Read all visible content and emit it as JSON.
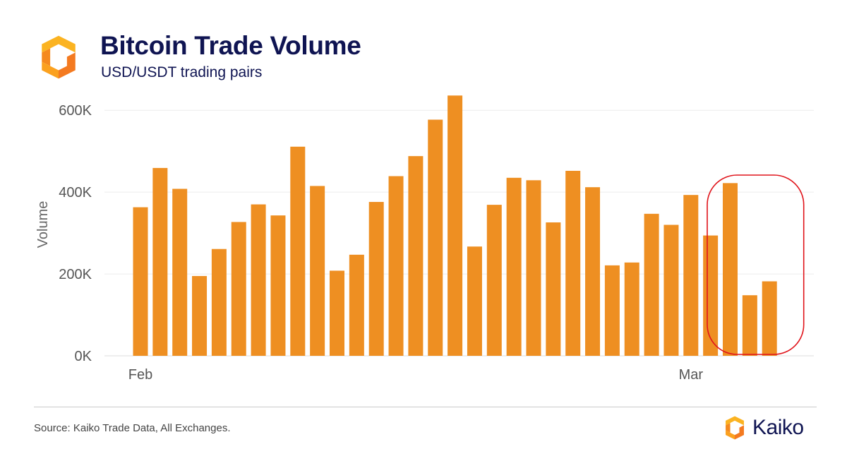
{
  "header": {
    "title": "Bitcoin Trade Volume",
    "subtitle": "USD/USDT trading pairs"
  },
  "footer": {
    "source": "Source: Kaiko Trade Data, All Exchanges.",
    "brand": "Kaiko"
  },
  "colors": {
    "bar": "#ee8f22",
    "title": "#0f1452",
    "highlight": "#e0141b",
    "grid": "#ececec"
  },
  "icons": {
    "logo": "kaiko-logo-icon",
    "brand_mark": "kaiko-logo-icon"
  },
  "chart_data": {
    "type": "bar",
    "title": "Bitcoin Trade Volume",
    "subtitle": "USD/USDT trading pairs",
    "xlabel": "",
    "ylabel": "Volume",
    "ylim": [
      0,
      640000
    ],
    "yticks": [
      0,
      200000,
      400000,
      600000
    ],
    "ytick_labels": [
      "0K",
      "200K",
      "400K",
      "600K"
    ],
    "x_tick_labels": [
      "Feb",
      "Mar"
    ],
    "grid": true,
    "categories": [
      "Feb 1",
      "Feb 2",
      "Feb 3",
      "Feb 4",
      "Feb 5",
      "Feb 6",
      "Feb 7",
      "Feb 8",
      "Feb 9",
      "Feb 10",
      "Feb 11",
      "Feb 12",
      "Feb 13",
      "Feb 14",
      "Feb 15",
      "Feb 16",
      "Feb 17",
      "Feb 18",
      "Feb 19",
      "Feb 20",
      "Feb 21",
      "Feb 22",
      "Feb 23",
      "Feb 24",
      "Feb 25",
      "Feb 26",
      "Feb 27",
      "Feb 28",
      "Mar 1",
      "Mar 2",
      "Mar 3",
      "Mar 4",
      "Mar 5"
    ],
    "values": [
      363000,
      459000,
      408000,
      195000,
      261000,
      327000,
      370000,
      343000,
      511000,
      415000,
      208000,
      247000,
      376000,
      439000,
      488000,
      577000,
      636000,
      267000,
      369000,
      435000,
      429000,
      326000,
      452000,
      412000,
      221000,
      228000,
      347000,
      320000,
      393000,
      294000,
      422000,
      148000,
      182000
    ],
    "annotation": {
      "shape": "rounded-rectangle",
      "highlighted_categories": [
        "Mar 3",
        "Mar 4",
        "Mar 5"
      ]
    }
  }
}
